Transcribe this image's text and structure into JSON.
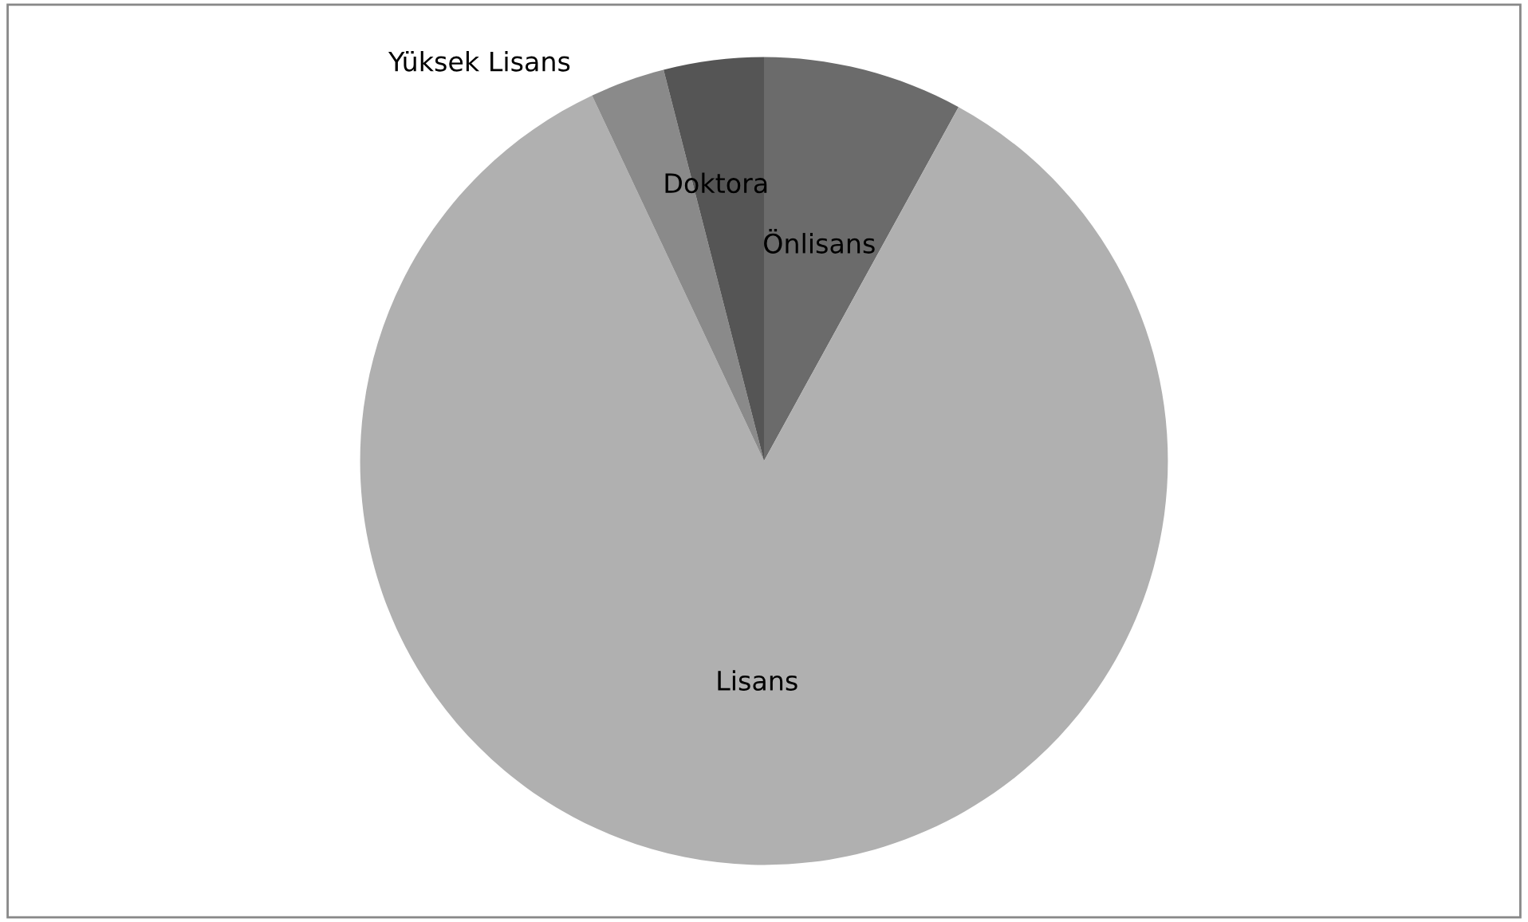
{
  "chart_data": {
    "type": "pie",
    "categories": [
      "Önlisans",
      "Lisans",
      "Yüksek Lisans",
      "Doktora"
    ],
    "values": [
      8,
      85,
      3,
      4
    ],
    "colors": [
      "#6b6b6b",
      "#b0b0b0",
      "#8a8a8a",
      "#555555"
    ],
    "legend": false
  }
}
